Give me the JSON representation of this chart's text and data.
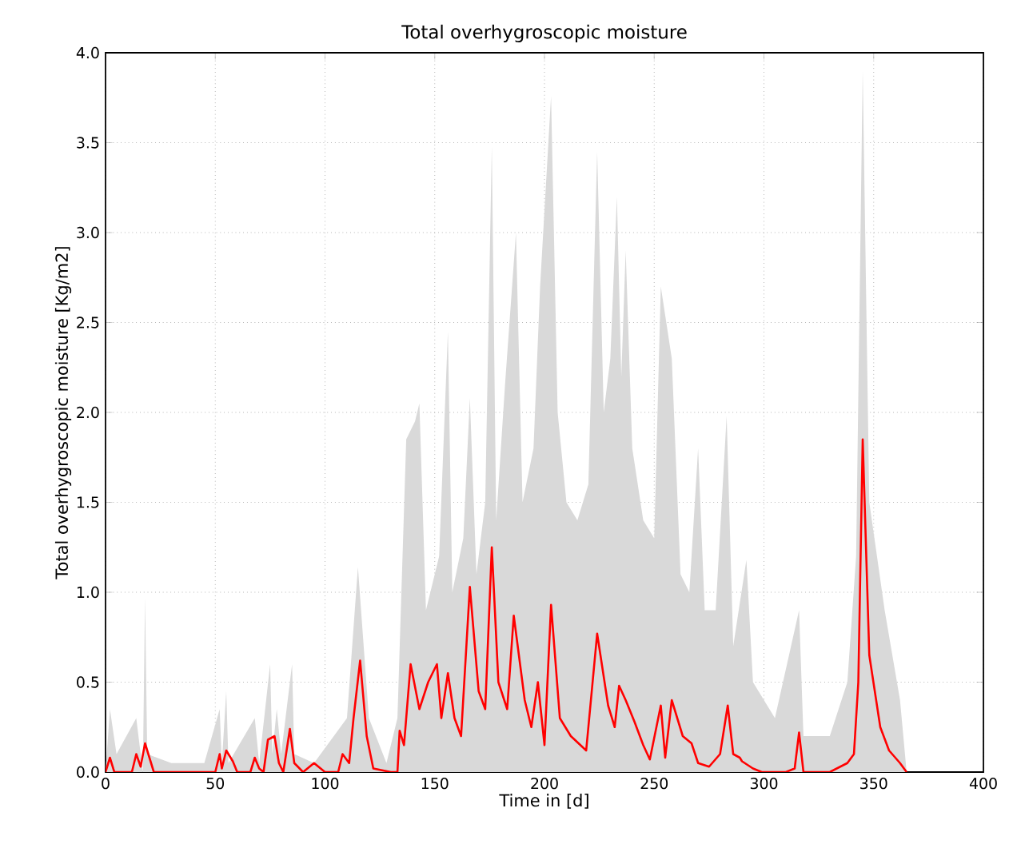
{
  "chart_data": {
    "type": "line",
    "title": "Total overhygroscopic moisture",
    "xlabel": "Time in [d]",
    "ylabel": "Total overhygroscopic moisture [Kg/m2]",
    "xlim": [
      0,
      400
    ],
    "ylim": [
      0,
      4.0
    ],
    "xticks": [
      0,
      50,
      100,
      150,
      200,
      250,
      300,
      350,
      400
    ],
    "yticks": [
      {
        "value": 0,
        "label": "0.0"
      },
      {
        "value": 0.5,
        "label": "0.5"
      },
      {
        "value": 1,
        "label": "1.0"
      },
      {
        "value": 1.5,
        "label": "1.5"
      },
      {
        "value": 2,
        "label": "2.0"
      },
      {
        "value": 2.5,
        "label": "2.5"
      },
      {
        "value": 3,
        "label": "3.0"
      },
      {
        "value": 3.5,
        "label": "3.5"
      },
      {
        "value": 4,
        "label": "4.0"
      }
    ],
    "grid": true,
    "series": [
      {
        "type": "area",
        "color": "#d9d9d9",
        "x": [
          0,
          2,
          5,
          14,
          17,
          18,
          19,
          30,
          45,
          52,
          53,
          55,
          56,
          68,
          70,
          75,
          76,
          78,
          80,
          85,
          86,
          95,
          110,
          115,
          120,
          128,
          133,
          137,
          141,
          143,
          146,
          152,
          156,
          158,
          163,
          166,
          169,
          173,
          176,
          178,
          182,
          187,
          190,
          195,
          198,
          203,
          206,
          210,
          215,
          220,
          224,
          227,
          230,
          233,
          235,
          237,
          240,
          245,
          250,
          253,
          258,
          262,
          266,
          270,
          273,
          278,
          283,
          286,
          292,
          295,
          305,
          316,
          318,
          330,
          338,
          342,
          345,
          348,
          355,
          362,
          365
        ],
        "values": [
          0,
          0.35,
          0.1,
          0.3,
          0,
          0.97,
          0.1,
          0.05,
          0.05,
          0.35,
          0.05,
          0.45,
          0.05,
          0.3,
          0.05,
          0.6,
          0.1,
          0.35,
          0.1,
          0.6,
          0.1,
          0.05,
          0.3,
          1.14,
          0.3,
          0.05,
          0.3,
          1.85,
          1.95,
          2.05,
          0.9,
          1.2,
          2.45,
          1.0,
          1.3,
          2.08,
          1.1,
          1.5,
          3.48,
          1.4,
          2.15,
          3.0,
          1.5,
          1.8,
          2.7,
          3.76,
          2.0,
          1.5,
          1.4,
          1.6,
          3.45,
          2.0,
          2.3,
          3.2,
          2.2,
          2.9,
          1.8,
          1.4,
          1.3,
          2.7,
          2.3,
          1.1,
          1.0,
          1.8,
          0.9,
          0.9,
          1.98,
          0.7,
          1.18,
          0.5,
          0.3,
          0.9,
          0.2,
          0.2,
          0.5,
          1.2,
          3.9,
          1.5,
          0.9,
          0.4,
          0
        ]
      },
      {
        "color": "#ff0000",
        "x": [
          0,
          2,
          4,
          12,
          14,
          16,
          18,
          20,
          22,
          40,
          50,
          52,
          53,
          55,
          58,
          60,
          66,
          68,
          70,
          72,
          74,
          77,
          79,
          81,
          84,
          86,
          90,
          95,
          100,
          106,
          108,
          111,
          113,
          116,
          119,
          122,
          130,
          133,
          134,
          136,
          139,
          143,
          147,
          151,
          153,
          156,
          159,
          162,
          166,
          170,
          173,
          176,
          179,
          183,
          186,
          191,
          194,
          197,
          200,
          203,
          207,
          212,
          219,
          224,
          229,
          232,
          234,
          237,
          241,
          245,
          248,
          253,
          255,
          258,
          263,
          267,
          270,
          275,
          280,
          283.5,
          286,
          289,
          290,
          295,
          299,
          310,
          314,
          316,
          318,
          330,
          338,
          341,
          343,
          345,
          348,
          353,
          357,
          362,
          365
        ],
        "values": [
          0,
          0.08,
          0,
          0,
          0.1,
          0.03,
          0.16,
          0.08,
          0,
          0,
          0,
          0.1,
          0.02,
          0.12,
          0.06,
          0,
          0,
          0.08,
          0.02,
          0,
          0.18,
          0.2,
          0.05,
          0,
          0.24,
          0.05,
          0,
          0.05,
          0,
          0,
          0.1,
          0.05,
          0.3,
          0.62,
          0.2,
          0.02,
          0,
          0,
          0.23,
          0.15,
          0.6,
          0.35,
          0.5,
          0.6,
          0.3,
          0.55,
          0.3,
          0.2,
          1.03,
          0.45,
          0.35,
          1.25,
          0.5,
          0.35,
          0.87,
          0.4,
          0.25,
          0.5,
          0.15,
          0.93,
          0.3,
          0.2,
          0.12,
          0.77,
          0.37,
          0.25,
          0.48,
          0.4,
          0.28,
          0.15,
          0.07,
          0.37,
          0.08,
          0.4,
          0.2,
          0.16,
          0.05,
          0.03,
          0.1,
          0.37,
          0.1,
          0.08,
          0.06,
          0.02,
          0,
          0,
          0.02,
          0.22,
          0,
          0,
          0.05,
          0.1,
          0.5,
          1.85,
          0.65,
          0.25,
          0.12,
          0.05,
          0
        ]
      }
    ]
  }
}
